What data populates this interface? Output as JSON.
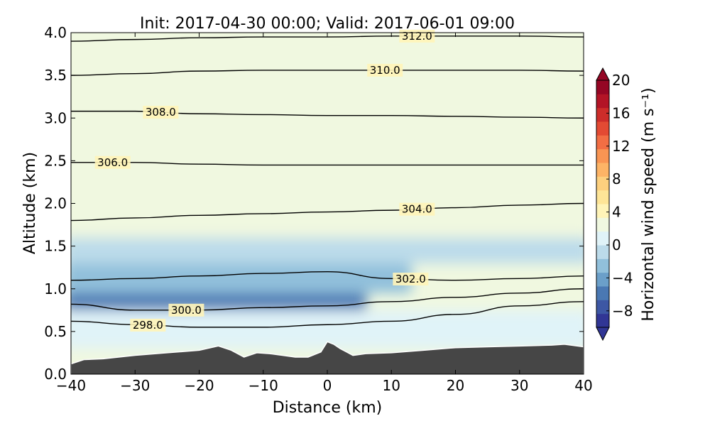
{
  "chart_data": {
    "type": "heatmap",
    "title": "Init: 2017-04-30 00:00; Valid: 2017-06-01 09:00",
    "xlabel": "Distance (km)",
    "ylabel": "Altitude (km)",
    "xlim": [
      -40,
      40
    ],
    "ylim": [
      0.0,
      4.0
    ],
    "x_ticks": [
      -40,
      -30,
      -20,
      -10,
      0,
      10,
      20,
      30,
      40
    ],
    "x_tick_labels": [
      "−40",
      "−30",
      "−20",
      "−10",
      "0",
      "10",
      "20",
      "30",
      "40"
    ],
    "y_ticks": [
      0.0,
      0.5,
      1.0,
      1.5,
      2.0,
      2.5,
      3.0,
      3.5,
      4.0
    ],
    "y_tick_labels": [
      "0.0",
      "0.5",
      "1.0",
      "1.5",
      "2.0",
      "2.5",
      "3.0",
      "3.5",
      "4.0"
    ],
    "colorbar": {
      "label": "Horizontal wind speed (m s⁻¹)",
      "range": [
        -10,
        20
      ],
      "ticks": [
        20,
        16,
        12,
        8,
        4,
        0,
        -4,
        -8
      ],
      "tick_labels": [
        "20",
        "16",
        "12",
        "8",
        "4",
        "0",
        "−4",
        "−8"
      ],
      "extend": "both",
      "colors": [
        "#313695",
        "#3d57a4",
        "#4a78b3",
        "#6b9fc9",
        "#91c0db",
        "#bcdbea",
        "#e0f3f8",
        "#f0f8e0",
        "#fff4b8",
        "#fee597",
        "#fdd07e",
        "#fdb466",
        "#f99553",
        "#f26e44",
        "#e34a33",
        "#cd2d2a",
        "#b31426",
        "#950624"
      ]
    },
    "wind_field": [
      {
        "z_min": 0.55,
        "z_max": 0.95,
        "x_min": -40,
        "x_max": 5,
        "value": -6
      },
      {
        "z_min": 0.95,
        "z_max": 1.3,
        "x_min": -40,
        "x_max": 12,
        "value": -3
      },
      {
        "z_min": 0.3,
        "z_max": 0.75,
        "x_min": -40,
        "x_max": 40,
        "value": 1
      },
      {
        "z_min": 1.3,
        "z_max": 1.6,
        "x_min": -40,
        "x_max": 40,
        "value": -1
      },
      {
        "z_min": 1.6,
        "z_max": 4.0,
        "x_min": -40,
        "x_max": 40,
        "value": 2
      }
    ],
    "isentropes": [
      {
        "level": 298.0,
        "label": "298.0",
        "x": [
          -40,
          -30,
          -20,
          -10,
          0,
          10,
          20,
          30,
          40
        ],
        "z": [
          0.62,
          0.58,
          0.55,
          0.55,
          0.58,
          0.62,
          0.7,
          0.8,
          0.85
        ]
      },
      {
        "level": 300.0,
        "label": "300.0",
        "x": [
          -40,
          -30,
          -20,
          -10,
          0,
          10,
          20,
          30,
          40
        ],
        "z": [
          0.82,
          0.75,
          0.75,
          0.78,
          0.8,
          0.85,
          0.9,
          0.95,
          1.0
        ]
      },
      {
        "level": 302.0,
        "label": "302.0",
        "x": [
          -40,
          -30,
          -20,
          -10,
          0,
          10,
          20,
          30,
          40
        ],
        "z": [
          1.1,
          1.12,
          1.15,
          1.18,
          1.2,
          1.12,
          1.1,
          1.12,
          1.15
        ]
      },
      {
        "level": 304.0,
        "label": "304.0",
        "x": [
          -40,
          -30,
          -20,
          -10,
          0,
          10,
          20,
          30,
          40
        ],
        "z": [
          1.8,
          1.83,
          1.86,
          1.88,
          1.9,
          1.92,
          1.95,
          1.98,
          2.0
        ]
      },
      {
        "level": 306.0,
        "label": "306.0",
        "x": [
          -40,
          -30,
          -20,
          -10,
          0,
          10,
          20,
          30,
          40
        ],
        "z": [
          2.48,
          2.48,
          2.46,
          2.45,
          2.45,
          2.45,
          2.45,
          2.45,
          2.45
        ]
      },
      {
        "level": 308.0,
        "label": "308.0",
        "x": [
          -40,
          -30,
          -20,
          -10,
          0,
          10,
          20,
          30,
          40
        ],
        "z": [
          3.08,
          3.08,
          3.05,
          3.04,
          3.03,
          3.03,
          3.02,
          3.01,
          3.0
        ]
      },
      {
        "level": 310.0,
        "label": "310.0",
        "x": [
          -40,
          -30,
          -20,
          -10,
          0,
          10,
          20,
          30,
          40
        ],
        "z": [
          3.5,
          3.52,
          3.55,
          3.56,
          3.56,
          3.56,
          3.56,
          3.56,
          3.55
        ]
      },
      {
        "level": 312.0,
        "label": "312.0",
        "x": [
          -40,
          -30,
          -20,
          -10,
          0,
          10,
          20,
          30,
          40
        ],
        "z": [
          3.9,
          3.92,
          3.94,
          3.95,
          3.95,
          3.96,
          3.96,
          3.96,
          3.95
        ]
      }
    ],
    "terrain": {
      "x": [
        -40,
        -38,
        -35,
        -30,
        -25,
        -20,
        -17,
        -15,
        -13,
        -11,
        -9,
        -7,
        -5,
        -3,
        -1,
        0,
        1,
        2,
        3,
        4,
        6,
        10,
        15,
        20,
        25,
        30,
        35,
        37,
        40
      ],
      "z": [
        0.12,
        0.17,
        0.18,
        0.22,
        0.25,
        0.28,
        0.33,
        0.28,
        0.2,
        0.25,
        0.24,
        0.22,
        0.2,
        0.2,
        0.26,
        0.38,
        0.35,
        0.3,
        0.26,
        0.22,
        0.24,
        0.25,
        0.28,
        0.31,
        0.32,
        0.33,
        0.34,
        0.35,
        0.32
      ]
    }
  }
}
